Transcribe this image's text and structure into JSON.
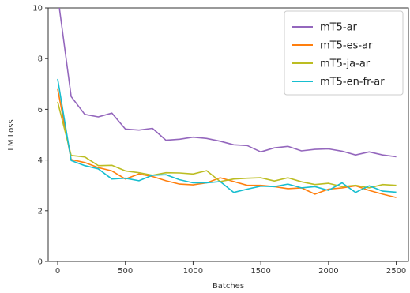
{
  "chart_data": {
    "type": "line",
    "title": "",
    "xlabel": "Batches",
    "ylabel": "LM Loss",
    "xlim": [
      -70,
      2590
    ],
    "ylim": [
      0,
      10
    ],
    "x_ticks": [
      0,
      500,
      1000,
      1500,
      2000,
      2500
    ],
    "y_ticks": [
      0,
      2,
      4,
      6,
      8,
      10
    ],
    "grid": false,
    "legend_position": "top-right",
    "series": [
      {
        "name": "mT5-ar",
        "color": "#9467bd",
        "x": [
          0,
          100,
          200,
          300,
          400,
          500,
          600,
          700,
          800,
          900,
          1000,
          1100,
          1200,
          1300,
          1400,
          1500,
          1600,
          1700,
          1800,
          1900,
          2000,
          2100,
          2200,
          2300,
          2400,
          2500
        ],
        "y": [
          10.5,
          6.5,
          5.8,
          5.7,
          5.85,
          5.22,
          5.18,
          5.25,
          4.78,
          4.82,
          4.9,
          4.85,
          4.74,
          4.6,
          4.57,
          4.32,
          4.48,
          4.54,
          4.36,
          4.42,
          4.44,
          4.35,
          4.2,
          4.32,
          4.2,
          4.13
        ]
      },
      {
        "name": "mT5-es-ar",
        "color": "#ff7f0e",
        "x": [
          0,
          100,
          200,
          300,
          400,
          500,
          600,
          700,
          800,
          900,
          1000,
          1100,
          1200,
          1300,
          1400,
          1500,
          1600,
          1700,
          1800,
          1900,
          2000,
          2100,
          2200,
          2300,
          2400,
          2500
        ],
        "y": [
          6.8,
          4.02,
          3.9,
          3.7,
          3.57,
          3.25,
          3.45,
          3.35,
          3.18,
          3.05,
          3.02,
          3.1,
          3.3,
          3.15,
          3.0,
          3.0,
          2.95,
          2.87,
          2.9,
          2.65,
          2.85,
          2.9,
          2.98,
          2.8,
          2.65,
          2.52
        ]
      },
      {
        "name": "mT5-ja-ar",
        "color": "#bcbd22",
        "x": [
          0,
          100,
          200,
          300,
          400,
          500,
          600,
          700,
          800,
          900,
          1000,
          1100,
          1200,
          1300,
          1400,
          1500,
          1600,
          1700,
          1800,
          1900,
          2000,
          2100,
          2200,
          2300,
          2400,
          2500
        ],
        "y": [
          6.3,
          4.18,
          4.12,
          3.78,
          3.79,
          3.57,
          3.5,
          3.4,
          3.5,
          3.49,
          3.45,
          3.58,
          3.15,
          3.25,
          3.28,
          3.3,
          3.17,
          3.3,
          3.14,
          3.03,
          3.08,
          2.95,
          3.0,
          2.9,
          3.03,
          3.0
        ]
      },
      {
        "name": "mT5-en-fr-ar",
        "color": "#17becf",
        "x": [
          0,
          100,
          200,
          300,
          400,
          500,
          600,
          700,
          800,
          900,
          1000,
          1100,
          1200,
          1300,
          1400,
          1500,
          1600,
          1700,
          1800,
          1900,
          2000,
          2100,
          2200,
          2300,
          2400,
          2500
        ],
        "y": [
          7.2,
          3.98,
          3.78,
          3.65,
          3.25,
          3.28,
          3.18,
          3.4,
          3.42,
          3.22,
          3.1,
          3.1,
          3.15,
          2.72,
          2.85,
          2.97,
          2.95,
          3.05,
          2.9,
          2.95,
          2.8,
          3.1,
          2.72,
          2.98,
          2.77,
          2.73
        ]
      }
    ]
  }
}
